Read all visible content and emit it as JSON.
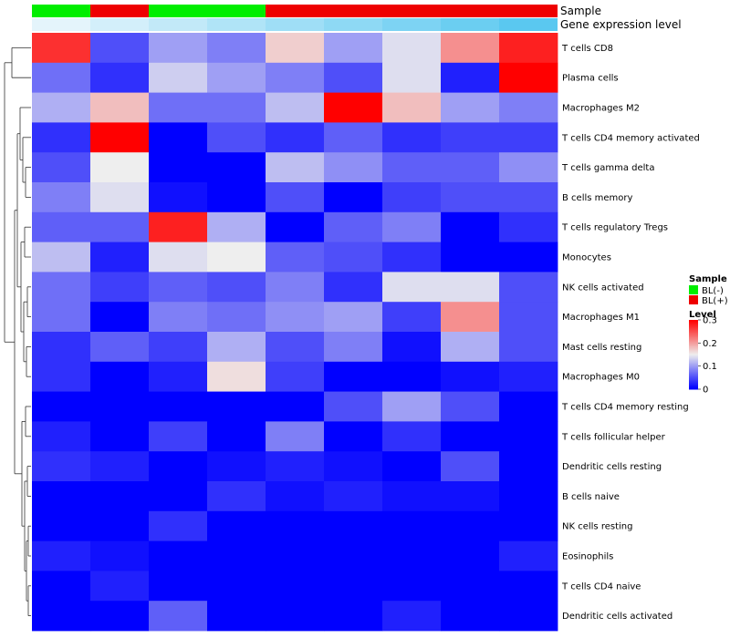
{
  "chart_data": {
    "type": "heatmap",
    "annotation_labels": {
      "sample": "Sample",
      "expression": "Gene expression level"
    },
    "rows": [
      "T cells CD8",
      "Plasma cells",
      "Macrophages M2",
      "T cells CD4 memory activated",
      "T cells gamma delta",
      "B cells memory",
      "T cells regulatory  Tregs",
      "Monocytes",
      "NK cells activated",
      "Macrophages M1",
      "Mast cells resting",
      "Macrophages M0",
      "T cells CD4 memory resting",
      "T cells follicular helper",
      "Dendritic cells resting",
      "B cells naive",
      "NK cells resting",
      "Eosinophils",
      "T cells CD4 naive",
      "Dendritic cells activated"
    ],
    "columns": 9,
    "sample_groups": [
      "BL(-)",
      "BL(+)",
      "BL(-)",
      "BL(-)",
      "BL(+)",
      "BL(+)",
      "BL(+)",
      "BL(+)",
      "BL(+)"
    ],
    "expression_level": [
      0.02,
      0.04,
      0.06,
      0.08,
      0.1,
      0.12,
      0.14,
      0.16,
      0.18
    ],
    "values": [
      [
        0.27,
        0.05,
        0.1,
        0.08,
        0.17,
        0.1,
        0.14,
        0.21,
        0.28
      ],
      [
        0.07,
        0.03,
        0.13,
        0.1,
        0.08,
        0.05,
        0.14,
        0.02,
        0.3
      ],
      [
        0.11,
        0.18,
        0.07,
        0.07,
        0.12,
        0.3,
        0.18,
        0.1,
        0.08
      ],
      [
        0.03,
        0.3,
        0.0,
        0.05,
        0.03,
        0.06,
        0.03,
        0.04,
        0.04
      ],
      [
        0.05,
        0.15,
        0.0,
        0.0,
        0.12,
        0.09,
        0.06,
        0.06,
        0.09
      ],
      [
        0.08,
        0.14,
        0.01,
        0.0,
        0.05,
        0.0,
        0.04,
        0.05,
        0.05
      ],
      [
        0.06,
        0.06,
        0.28,
        0.11,
        0.0,
        0.06,
        0.08,
        0.0,
        0.03
      ],
      [
        0.12,
        0.02,
        0.14,
        0.15,
        0.06,
        0.05,
        0.03,
        0.0,
        0.0
      ],
      [
        0.07,
        0.04,
        0.06,
        0.05,
        0.08,
        0.03,
        0.14,
        0.14,
        0.05
      ],
      [
        0.07,
        0.0,
        0.08,
        0.07,
        0.09,
        0.1,
        0.04,
        0.21,
        0.05
      ],
      [
        0.03,
        0.06,
        0.04,
        0.11,
        0.05,
        0.08,
        0.01,
        0.11,
        0.05
      ],
      [
        0.03,
        0.0,
        0.02,
        0.16,
        0.04,
        0.0,
        0.0,
        0.01,
        0.02
      ],
      [
        0.0,
        0.0,
        0.0,
        0.0,
        0.0,
        0.05,
        0.1,
        0.05,
        0.0
      ],
      [
        0.02,
        0.0,
        0.04,
        0.0,
        0.08,
        0.0,
        0.03,
        0.0,
        0.0
      ],
      [
        0.03,
        0.02,
        0.0,
        0.01,
        0.02,
        0.01,
        0.0,
        0.05,
        0.0
      ],
      [
        0.0,
        0.0,
        0.0,
        0.03,
        0.01,
        0.02,
        0.01,
        0.01,
        0.0
      ],
      [
        0.0,
        0.0,
        0.03,
        0.0,
        0.0,
        0.0,
        0.0,
        0.0,
        0.0
      ],
      [
        0.02,
        0.01,
        0.0,
        0.0,
        0.0,
        0.0,
        0.0,
        0.0,
        0.02
      ],
      [
        0.0,
        0.02,
        0.0,
        0.0,
        0.0,
        0.0,
        0.0,
        0.0,
        0.0
      ],
      [
        0.0,
        0.0,
        0.06,
        0.0,
        0.0,
        0.0,
        0.02,
        0.0,
        0.0
      ]
    ],
    "color_scale": {
      "low": "#0000ff",
      "mid": "#eeeeee",
      "high": "#ff0000",
      "min": 0,
      "mid_value": 0.15,
      "max": 0.3
    },
    "expression_colors": {
      "low": "#e4f4fb",
      "high": "#5ac8f0"
    },
    "legend": {
      "sample_title": "Sample",
      "sample_items": [
        {
          "label": "BL(-)",
          "color": "#00ee00"
        },
        {
          "label": "BL(+)",
          "color": "#ee0000"
        }
      ],
      "level_title": "Level",
      "level_ticks": [
        {
          "value": 0.3,
          "label": "0.3"
        },
        {
          "value": 0.2,
          "label": "0.2"
        },
        {
          "value": 0.1,
          "label": "0.1"
        },
        {
          "value": 0.0,
          "label": "0"
        }
      ]
    }
  }
}
